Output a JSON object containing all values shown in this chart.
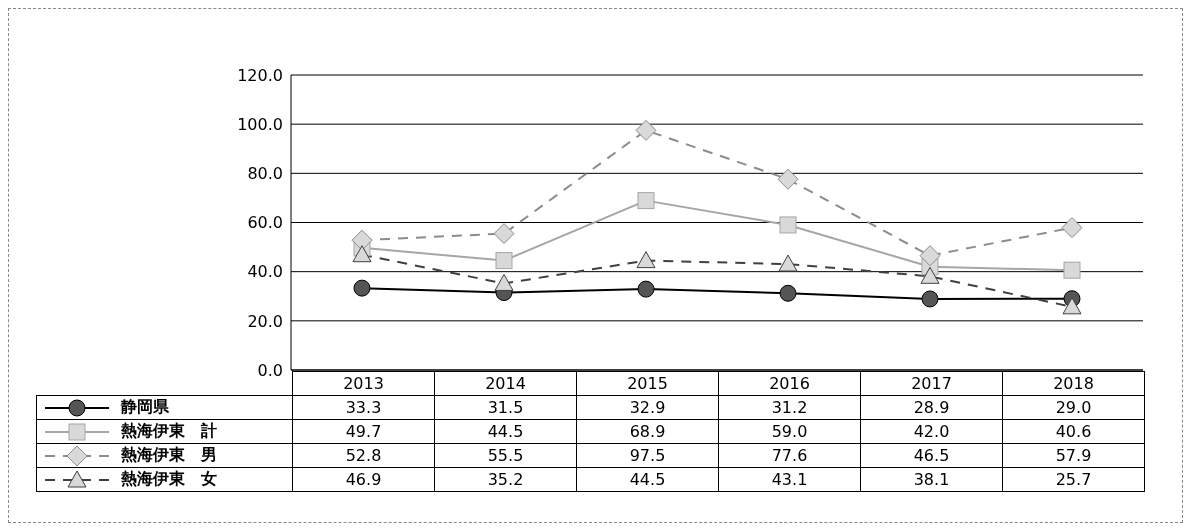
{
  "chart_data": {
    "type": "line",
    "categories": [
      "2013",
      "2014",
      "2015",
      "2016",
      "2017",
      "2018"
    ],
    "series": [
      {
        "name": "静岡県",
        "color": "#000000",
        "marker": "circle",
        "line_style": "solid",
        "values": [
          33.3,
          31.5,
          32.9,
          31.2,
          28.9,
          29.0
        ],
        "value_labels": [
          "33.3",
          "31.5",
          "32.9",
          "31.2",
          "28.9",
          "29.0"
        ]
      },
      {
        "name": "熱海伊東　計",
        "color": "#a6a6a6",
        "marker": "square",
        "line_style": "solid",
        "values": [
          49.7,
          44.5,
          68.9,
          59.0,
          42.0,
          40.6
        ],
        "value_labels": [
          "49.7",
          "44.5",
          "68.9",
          "59.0",
          "42.0",
          "40.6"
        ]
      },
      {
        "name": "熱海伊東　男",
        "color": "#8c8c8c",
        "marker": "diamond",
        "line_style": "dashed",
        "values": [
          52.8,
          55.5,
          97.5,
          77.6,
          46.5,
          57.9
        ],
        "value_labels": [
          "52.8",
          "55.5",
          "97.5",
          "77.6",
          "46.5",
          "57.9"
        ]
      },
      {
        "name": "熱海伊東　女",
        "color": "#404040",
        "marker": "triangle",
        "line_style": "dashed",
        "values": [
          46.9,
          35.2,
          44.5,
          43.1,
          38.1,
          25.7
        ],
        "value_labels": [
          "46.9",
          "35.2",
          "44.5",
          "43.1",
          "38.1",
          "25.7"
        ]
      }
    ],
    "ylim": [
      0,
      120
    ],
    "yticks": [
      {
        "value": 0,
        "label": "0.0"
      },
      {
        "value": 20,
        "label": "20.0"
      },
      {
        "value": 40,
        "label": "40.0"
      },
      {
        "value": 60,
        "label": "60.0"
      },
      {
        "value": 80,
        "label": "80.0"
      },
      {
        "value": 100,
        "label": "100.0"
      },
      {
        "value": 120,
        "label": "120.0"
      }
    ],
    "grid": "y",
    "legend": "bottom"
  }
}
